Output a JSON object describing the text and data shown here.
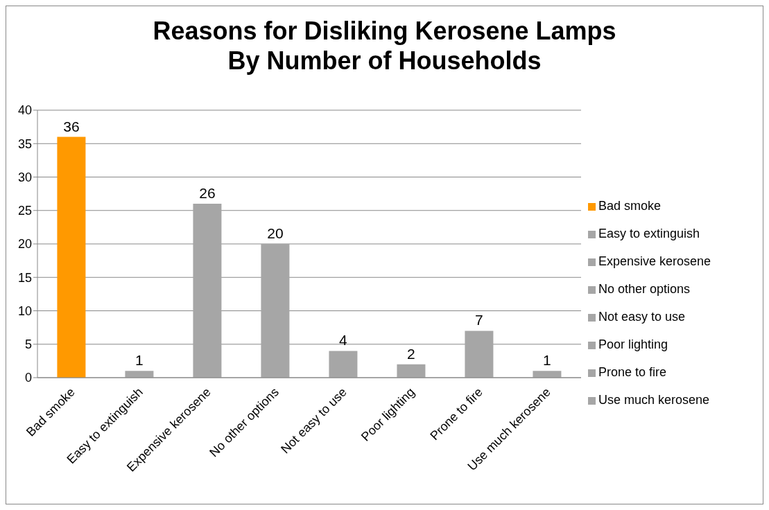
{
  "chart_data": {
    "type": "bar",
    "title": "Reasons for Disliking Kerosene Lamps\nBy Number of Households",
    "categories": [
      "Bad smoke",
      "Easy to extinguish",
      "Expensive kerosene",
      "No other options",
      "Not easy to use",
      "Poor lighting",
      "Prone to fire",
      "Use much kerosene"
    ],
    "series": [
      {
        "name": "Bad smoke",
        "color": "#ff9900",
        "values": [
          36,
          null,
          null,
          null,
          null,
          null,
          null,
          null
        ]
      },
      {
        "name": "Easy to extinguish",
        "color": "#a6a6a6",
        "values": [
          null,
          1,
          null,
          null,
          null,
          null,
          null,
          null
        ]
      },
      {
        "name": "Expensive kerosene",
        "color": "#a6a6a6",
        "values": [
          null,
          null,
          26,
          null,
          null,
          null,
          null,
          null
        ]
      },
      {
        "name": "No other options",
        "color": "#a6a6a6",
        "values": [
          null,
          null,
          null,
          20,
          null,
          null,
          null,
          null
        ]
      },
      {
        "name": "Not easy to use",
        "color": "#a6a6a6",
        "values": [
          null,
          null,
          null,
          null,
          4,
          null,
          null,
          null
        ]
      },
      {
        "name": "Poor lighting",
        "color": "#a6a6a6",
        "values": [
          null,
          null,
          null,
          null,
          null,
          2,
          null,
          null
        ]
      },
      {
        "name": "Prone to fire",
        "color": "#a6a6a6",
        "values": [
          null,
          null,
          null,
          null,
          null,
          null,
          7,
          null
        ]
      },
      {
        "name": "Use much kerosene",
        "color": "#a6a6a6",
        "values": [
          null,
          null,
          null,
          null,
          null,
          null,
          null,
          1
        ]
      }
    ],
    "stacked": true,
    "ylim": [
      0,
      40
    ],
    "yticks": [
      0,
      5,
      10,
      15,
      20,
      25,
      30,
      35,
      40
    ],
    "grid": "y",
    "legend": "right",
    "data_labels": true
  }
}
